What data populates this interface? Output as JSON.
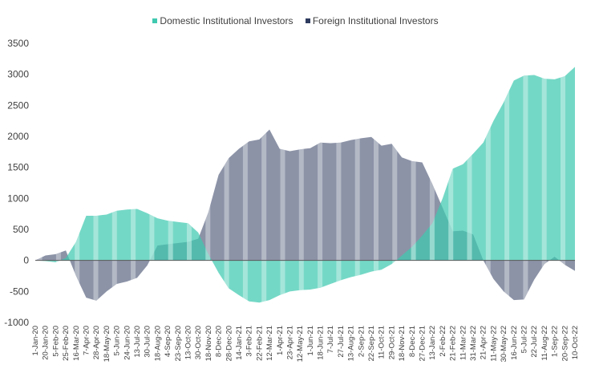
{
  "chart_data": {
    "type": "area",
    "title": "",
    "xlabel": "",
    "ylabel": "",
    "ylim": [
      -1000,
      3500
    ],
    "yticks": [
      -1000,
      -500,
      0,
      500,
      1000,
      1500,
      2000,
      2500,
      3000,
      3500
    ],
    "grid": false,
    "legend_position": "top-center",
    "categories": [
      "1-Jan-20",
      "20-Jan-20",
      "5-Feb-20",
      "25-Feb-20",
      "16-Mar-20",
      "7-Apr-20",
      "28-Apr-20",
      "18-May-20",
      "5-Jun-20",
      "24-Jun-20",
      "13-Jul-20",
      "30-Jul-20",
      "18-Aug-20",
      "4-Sep-20",
      "23-Sep-20",
      "13-Oct-20",
      "30-Oct-20",
      "18-Nov-20",
      "8-Dec-20",
      "28-Dec-20",
      "14-Jan-21",
      "3-Feb-21",
      "22-Feb-21",
      "12-Mar-21",
      "1-Apr-21",
      "23-Apr-21",
      "12-May-21",
      "1-Jun-21",
      "18-Jun-21",
      "7-Jul-21",
      "27-Jul-21",
      "13-Aug-21",
      "2-Sep-21",
      "22-Sep-21",
      "11-Oct-21",
      "29-Oct-21",
      "18-Nov-21",
      "8-Dec-21",
      "27-Dec-21",
      "13-Jan-22",
      "2-Feb-22",
      "21-Feb-22",
      "11-Mar-22",
      "31-Mar-22",
      "21-Apr-22",
      "11-May-22",
      "30-May-22",
      "16-Jun-22",
      "5-Jul-22",
      "22-Jul-22",
      "11-Aug-22",
      "1-Sep-22",
      "20-Sep-22",
      "10-Oct-22"
    ],
    "series": [
      {
        "name": "Domestic Institutional Investors",
        "color": "#3fc9b0",
        "values": [
          0,
          -10,
          -30,
          40,
          300,
          720,
          720,
          740,
          800,
          820,
          830,
          760,
          680,
          640,
          620,
          600,
          450,
          100,
          -200,
          -450,
          -560,
          -660,
          -680,
          -640,
          -560,
          -500,
          -480,
          -470,
          -440,
          -380,
          -320,
          -270,
          -230,
          -180,
          -150,
          -60,
          80,
          220,
          400,
          600,
          1000,
          1480,
          1550,
          1720,
          1900,
          2250,
          2550,
          2900,
          2980,
          2990,
          2930,
          2920,
          2970,
          3120
        ]
      },
      {
        "name": "Foreign Institutional Investors",
        "color": "#2e3b5e",
        "values": [
          0,
          80,
          100,
          160,
          -250,
          -600,
          -650,
          -500,
          -380,
          -340,
          -280,
          -80,
          240,
          260,
          280,
          300,
          350,
          780,
          1380,
          1650,
          1800,
          1920,
          1950,
          2110,
          1800,
          1760,
          1790,
          1810,
          1900,
          1890,
          1900,
          1940,
          1970,
          1990,
          1850,
          1880,
          1660,
          1600,
          1580,
          1230,
          850,
          470,
          480,
          420,
          0,
          -300,
          -500,
          -640,
          -630,
          -310,
          -60,
          60,
          -70,
          -170
        ]
      }
    ]
  }
}
